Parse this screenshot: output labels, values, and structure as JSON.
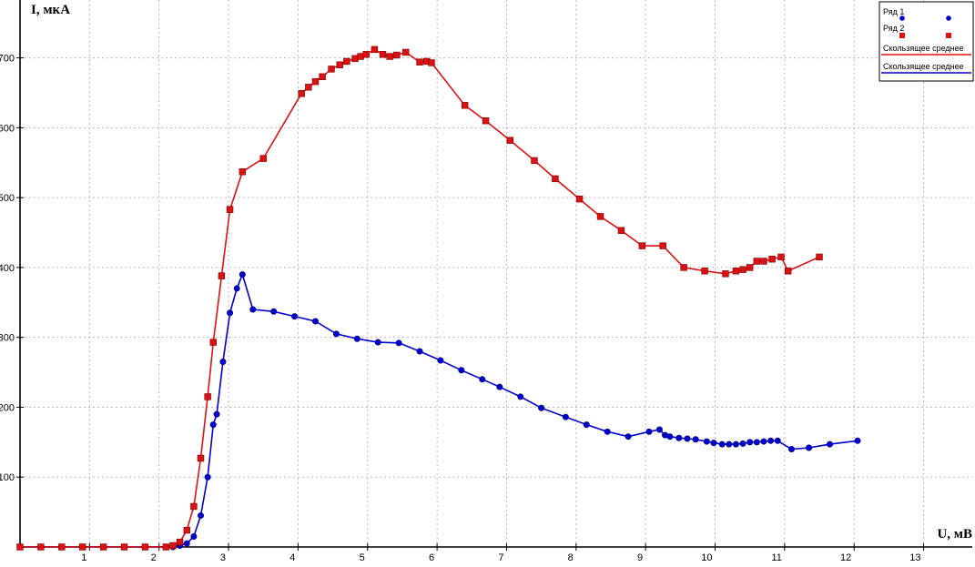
{
  "chart_data": {
    "type": "line",
    "title": "",
    "xlabel": "U, мВ",
    "ylabel": "I, мкА",
    "xlim": [
      -1.0,
      13.7
    ],
    "ylim": [
      -5,
      765
    ],
    "x_ticks": [
      1,
      2,
      3,
      4,
      5,
      6,
      7,
      8,
      9,
      10,
      11,
      12,
      13
    ],
    "y_ticks": [
      100,
      200,
      300,
      400,
      500,
      600,
      700
    ],
    "y_tick_labels": [
      "100",
      "200",
      "300",
      "400",
      "500",
      "600",
      "700"
    ],
    "grid": true,
    "legend_position": "top-right",
    "legend": [
      "Ряд 1",
      "Ряд 2",
      "Скользящее среднее",
      "Скользящее среднее"
    ],
    "series": [
      {
        "name": "Ряд 1",
        "marker": "circle",
        "color": "#0000cc",
        "points": [
          [
            0.0,
            0
          ],
          [
            0.3,
            0
          ],
          [
            0.6,
            0
          ],
          [
            0.9,
            0
          ],
          [
            1.2,
            0
          ],
          [
            1.5,
            0
          ],
          [
            1.8,
            0
          ],
          [
            2.1,
            0
          ],
          [
            2.2,
            0
          ],
          [
            2.3,
            2
          ],
          [
            2.4,
            5
          ],
          [
            2.5,
            15
          ],
          [
            2.6,
            45
          ],
          [
            2.7,
            100
          ],
          [
            2.78,
            175
          ],
          [
            2.83,
            190
          ],
          [
            2.92,
            265
          ],
          [
            3.02,
            335
          ],
          [
            3.12,
            370
          ],
          [
            3.2,
            390
          ],
          [
            3.35,
            340
          ],
          [
            3.65,
            337
          ],
          [
            3.95,
            330
          ],
          [
            4.25,
            323
          ],
          [
            4.55,
            305
          ],
          [
            4.85,
            298
          ],
          [
            5.15,
            293
          ],
          [
            5.45,
            292
          ],
          [
            5.75,
            280
          ],
          [
            6.05,
            267
          ],
          [
            6.35,
            253
          ],
          [
            6.65,
            240
          ],
          [
            6.9,
            229
          ],
          [
            7.2,
            215
          ],
          [
            7.5,
            199
          ],
          [
            7.85,
            186
          ],
          [
            8.15,
            175
          ],
          [
            8.45,
            165
          ],
          [
            8.75,
            158
          ],
          [
            9.05,
            165
          ],
          [
            9.2,
            168
          ],
          [
            9.28,
            160
          ],
          [
            9.35,
            158
          ],
          [
            9.48,
            156
          ],
          [
            9.6,
            155
          ],
          [
            9.72,
            154
          ],
          [
            9.88,
            151
          ],
          [
            9.98,
            149
          ],
          [
            10.1,
            147
          ],
          [
            10.2,
            147
          ],
          [
            10.3,
            147
          ],
          [
            10.4,
            148
          ],
          [
            10.5,
            150
          ],
          [
            10.6,
            150
          ],
          [
            10.7,
            151
          ],
          [
            10.8,
            152
          ],
          [
            10.9,
            152
          ],
          [
            11.1,
            140
          ],
          [
            11.35,
            142
          ],
          [
            11.65,
            147
          ],
          [
            12.05,
            152
          ]
        ]
      },
      {
        "name": "Ряд 2",
        "marker": "square",
        "color": "#dd1111",
        "points": [
          [
            0.0,
            0
          ],
          [
            0.3,
            0
          ],
          [
            0.6,
            0
          ],
          [
            0.9,
            0
          ],
          [
            1.2,
            0
          ],
          [
            1.5,
            0
          ],
          [
            1.8,
            0
          ],
          [
            2.1,
            0
          ],
          [
            2.2,
            2
          ],
          [
            2.3,
            7
          ],
          [
            2.4,
            24
          ],
          [
            2.5,
            58
          ],
          [
            2.6,
            127
          ],
          [
            2.7,
            215
          ],
          [
            2.78,
            293
          ],
          [
            2.9,
            388
          ],
          [
            3.02,
            483
          ],
          [
            3.2,
            537
          ],
          [
            3.5,
            556
          ],
          [
            4.05,
            649
          ],
          [
            4.15,
            658
          ],
          [
            4.25,
            666
          ],
          [
            4.35,
            673
          ],
          [
            4.48,
            684
          ],
          [
            4.6,
            690
          ],
          [
            4.7,
            695
          ],
          [
            4.82,
            699
          ],
          [
            4.9,
            702
          ],
          [
            4.98,
            705
          ],
          [
            5.1,
            712
          ],
          [
            5.22,
            705
          ],
          [
            5.32,
            702
          ],
          [
            5.42,
            704
          ],
          [
            5.55,
            708
          ],
          [
            5.75,
            694
          ],
          [
            5.85,
            695
          ],
          [
            5.92,
            693
          ],
          [
            6.4,
            632
          ],
          [
            6.7,
            610
          ],
          [
            7.05,
            582
          ],
          [
            7.4,
            553
          ],
          [
            7.7,
            527
          ],
          [
            8.05,
            498
          ],
          [
            8.35,
            473
          ],
          [
            8.65,
            453
          ],
          [
            8.95,
            431
          ],
          [
            9.25,
            431
          ],
          [
            9.55,
            400
          ],
          [
            9.85,
            395
          ],
          [
            10.15,
            391
          ],
          [
            10.3,
            395
          ],
          [
            10.4,
            397
          ],
          [
            10.5,
            400
          ],
          [
            10.6,
            409
          ],
          [
            10.7,
            409
          ],
          [
            10.82,
            412
          ],
          [
            10.95,
            415
          ],
          [
            11.05,
            395
          ],
          [
            11.5,
            415
          ]
        ]
      }
    ]
  }
}
